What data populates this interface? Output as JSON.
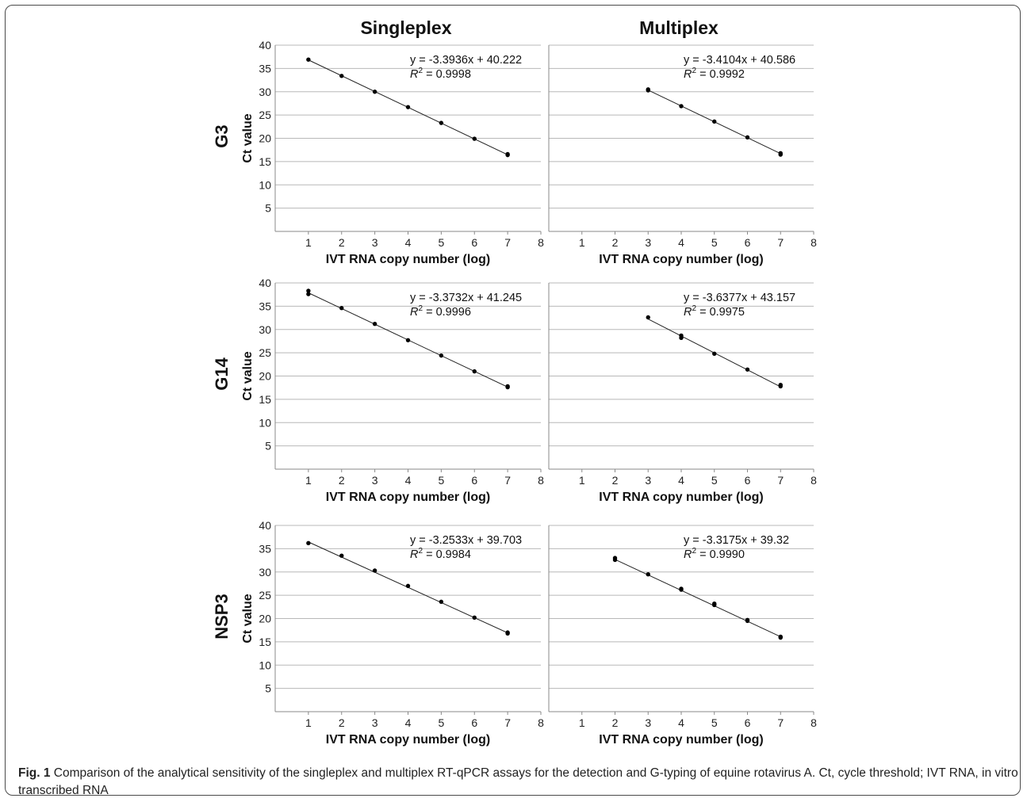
{
  "figure": {
    "column_titles": [
      "Singleplex",
      "Multiplex"
    ],
    "row_titles": [
      "G3",
      "G14",
      "NSP3"
    ],
    "caption_label": "Fig. 1",
    "caption_text": "Comparison of the analytical sensitivity of the singleplex and multiplex RT-qPCR assays for the detection and G-typing of equine rotavirus A. Ct, cycle threshold; IVT RNA, in vitro transcribed RNA"
  },
  "chart_data": [
    {
      "type": "scatter",
      "panel": "G3 Singleplex",
      "xlabel": "IVT RNA copy number (log)",
      "ylabel": "Ct value",
      "xlim": [
        0,
        8
      ],
      "ylim": [
        0,
        40
      ],
      "x_ticks": [
        1,
        2,
        3,
        4,
        5,
        6,
        7,
        8
      ],
      "y_ticks": [
        5,
        10,
        15,
        20,
        25,
        30,
        35,
        40
      ],
      "grid": "horizontal",
      "equation": "y = -3.3936x + 40.222",
      "r2_value": "= 0.9998",
      "slope": -3.3936,
      "intercept": 40.222,
      "points": [
        [
          1,
          36.9
        ],
        [
          2,
          33.4
        ],
        [
          3,
          30.0
        ],
        [
          4,
          26.7
        ],
        [
          5,
          23.3
        ],
        [
          6,
          19.9
        ],
        [
          7,
          16.4
        ],
        [
          7,
          16.6
        ]
      ]
    },
    {
      "type": "scatter",
      "panel": "G3 Multiplex",
      "xlabel": "IVT RNA copy number (log)",
      "ylabel": "",
      "xlim": [
        0,
        8
      ],
      "ylim": [
        0,
        40
      ],
      "x_ticks": [
        1,
        2,
        3,
        4,
        5,
        6,
        7,
        8
      ],
      "y_ticks": [],
      "grid": "horizontal",
      "equation": "y = -3.4104x + 40.586",
      "r2_value": "= 0.9992",
      "slope": -3.4104,
      "intercept": 40.586,
      "points": [
        [
          3,
          30.3
        ],
        [
          3,
          30.5
        ],
        [
          4,
          26.9
        ],
        [
          5,
          23.6
        ],
        [
          6,
          20.2
        ],
        [
          7,
          16.5
        ],
        [
          7,
          16.8
        ]
      ]
    },
    {
      "type": "scatter",
      "panel": "G14 Singleplex",
      "xlabel": "IVT RNA copy number (log)",
      "ylabel": "Ct value",
      "xlim": [
        0,
        8
      ],
      "ylim": [
        0,
        40
      ],
      "x_ticks": [
        1,
        2,
        3,
        4,
        5,
        6,
        7,
        8
      ],
      "y_ticks": [
        5,
        10,
        15,
        20,
        25,
        30,
        35,
        40
      ],
      "grid": "horizontal",
      "equation": "y = -3.3732x + 41.245",
      "r2_value": "= 0.9996",
      "slope": -3.3732,
      "intercept": 41.245,
      "points": [
        [
          1,
          37.6
        ],
        [
          1,
          38.3
        ],
        [
          2,
          34.6
        ],
        [
          3,
          31.2
        ],
        [
          4,
          27.7
        ],
        [
          5,
          24.4
        ],
        [
          6,
          21.0
        ],
        [
          7,
          17.6
        ],
        [
          7,
          17.8
        ]
      ]
    },
    {
      "type": "scatter",
      "panel": "G14 Multiplex",
      "xlabel": "IVT RNA copy number (log)",
      "ylabel": "",
      "xlim": [
        0,
        8
      ],
      "ylim": [
        0,
        40
      ],
      "x_ticks": [
        1,
        2,
        3,
        4,
        5,
        6,
        7,
        8
      ],
      "y_ticks": [],
      "grid": "horizontal",
      "equation": "y = -3.6377x + 43.157",
      "r2_value": "= 0.9975",
      "slope": -3.6377,
      "intercept": 43.157,
      "points": [
        [
          3,
          32.6
        ],
        [
          4,
          28.2
        ],
        [
          4,
          28.7
        ],
        [
          5,
          24.8
        ],
        [
          6,
          21.4
        ],
        [
          7,
          17.8
        ],
        [
          7,
          18.1
        ]
      ]
    },
    {
      "type": "scatter",
      "panel": "NSP3 Singleplex",
      "xlabel": "IVT RNA copy number (log)",
      "ylabel": "Ct value",
      "xlim": [
        0,
        8
      ],
      "ylim": [
        0,
        40
      ],
      "x_ticks": [
        1,
        2,
        3,
        4,
        5,
        6,
        7,
        8
      ],
      "y_ticks": [
        5,
        10,
        15,
        20,
        25,
        30,
        35,
        40
      ],
      "grid": "horizontal",
      "equation": "y = -3.2533x + 39.703",
      "r2_value": "= 0.9984",
      "slope": -3.2533,
      "intercept": 39.703,
      "points": [
        [
          1,
          36.2
        ],
        [
          2,
          33.5
        ],
        [
          3,
          30.3
        ],
        [
          4,
          27.0
        ],
        [
          5,
          23.6
        ],
        [
          6,
          20.2
        ],
        [
          7,
          16.8
        ],
        [
          7,
          17.0
        ]
      ]
    },
    {
      "type": "scatter",
      "panel": "NSP3 Multiplex",
      "xlabel": "IVT RNA copy number (log)",
      "ylabel": "",
      "xlim": [
        0,
        8
      ],
      "ylim": [
        0,
        40
      ],
      "x_ticks": [
        1,
        2,
        3,
        4,
        5,
        6,
        7,
        8
      ],
      "y_ticks": [],
      "grid": "horizontal",
      "equation": "y = -3.3175x + 39.32",
      "r2_value": "= 0.9990",
      "slope": -3.3175,
      "intercept": 39.32,
      "points": [
        [
          2,
          32.6
        ],
        [
          2,
          33.0
        ],
        [
          3,
          29.5
        ],
        [
          4,
          26.2
        ],
        [
          4,
          26.4
        ],
        [
          5,
          22.9
        ],
        [
          5,
          23.2
        ],
        [
          6,
          19.5
        ],
        [
          6,
          19.7
        ],
        [
          7,
          15.9
        ],
        [
          7,
          16.1
        ]
      ]
    }
  ]
}
